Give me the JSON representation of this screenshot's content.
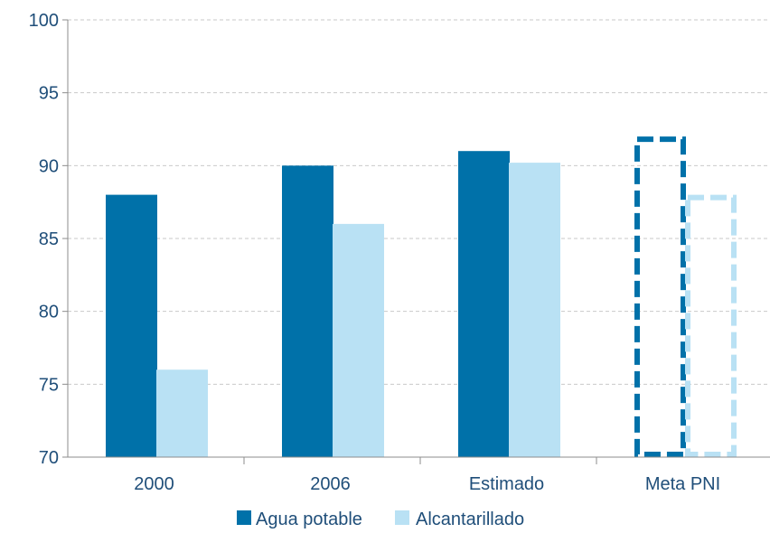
{
  "colors": {
    "text": "#1f4e79",
    "grid": "#c9c9c9",
    "axis": "#8c8c8c"
  },
  "chart_data": {
    "type": "bar",
    "categories": [
      "2000",
      "2006",
      "Estimado",
      "Meta PNI"
    ],
    "series": [
      {
        "name": "Agua potable",
        "color": "#0071a9",
        "values": [
          88,
          90,
          91,
          92
        ],
        "style": [
          "solid",
          "solid",
          "solid",
          "dashed-outline"
        ]
      },
      {
        "name": "Alcantarillado",
        "color": "#b9e1f4",
        "values": [
          76,
          86,
          90.2,
          88
        ],
        "style": [
          "solid",
          "solid",
          "solid",
          "dashed-outline"
        ]
      }
    ],
    "ylim": [
      70,
      100
    ],
    "yticks": [
      70,
      75,
      80,
      85,
      90,
      95,
      100
    ],
    "grid": true,
    "legend_position": "bottom"
  }
}
